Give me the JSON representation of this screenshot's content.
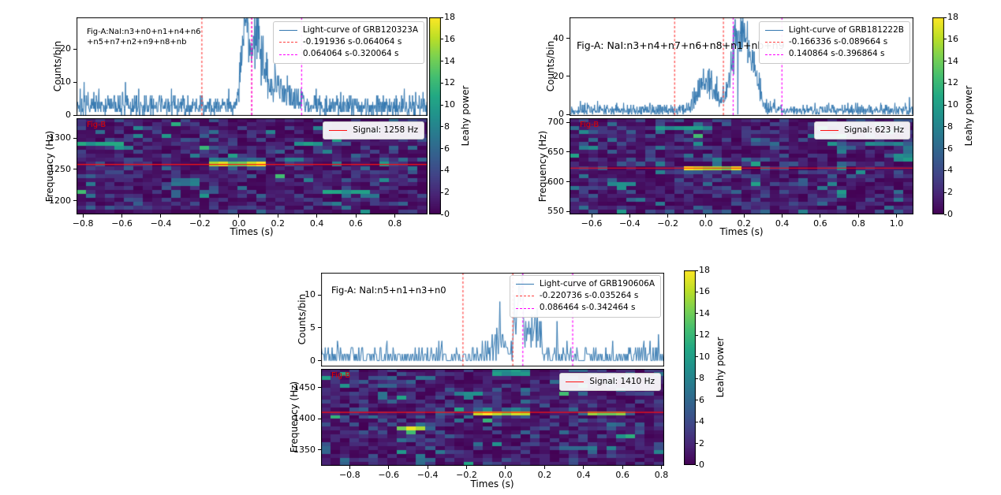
{
  "chart_data": {
    "colorbar": {
      "label": "Leahy power",
      "min": 0,
      "max": 18,
      "ticks": [
        0,
        2,
        4,
        6,
        8,
        10,
        12,
        14,
        16,
        18
      ],
      "colormap": "viridis"
    },
    "panels": [
      {
        "grb": "GRB120323A",
        "fig_a_label": "Fig-A:NaI:n3+n0+n1+n4+n6\n+n5+n7+n2+n9+n8+nb",
        "fig_b_label": "Fig-B",
        "legend": {
          "lightcurve": "Light-curve of GRB120323A",
          "interval1": "-0.191936 s-0.064064 s",
          "interval2": "0.064064 s-0.320064 s",
          "signal": "Signal: 1258 Hz"
        },
        "light_curve": {
          "type": "line",
          "ylabel": "Counts/bin",
          "xlim": [
            -0.833,
            0.968
          ],
          "ylim": [
            -0.2,
            29.6
          ],
          "yticks": [
            0,
            10,
            20
          ],
          "bins": 900,
          "baseline": 2.8,
          "burst_components": [
            [
              0.03,
              0.018,
              22
            ],
            [
              0.088,
              0.032,
              17
            ],
            [
              0.17,
              0.09,
              6
            ]
          ],
          "dropouts": [],
          "red_lines": [
            -0.191936,
            0.064064
          ],
          "magenta_lines": [
            0.064064,
            0.320064
          ],
          "line_color": "#3579b1",
          "red_color": "#ff4040",
          "magenta_color": "#ff00ff"
        },
        "spectrogram": {
          "type": "heatmap",
          "ylabel": "Frequency (Hz)",
          "xlabel": "Times (s)",
          "flim": [
            1178,
            1332
          ],
          "yticks": [
            1200,
            1250,
            1300
          ],
          "xticks": [
            -0.8,
            -0.6,
            -0.4,
            -0.2,
            0.0,
            0.2,
            0.4,
            0.6,
            0.8
          ],
          "signal_hz": 1258,
          "signal_color": "#ff1111",
          "streak_trange": [
            -0.17,
            0.13
          ],
          "hot_cells": [
            [
              -0.85,
              -0.7,
              1284,
              1291,
              10
            ],
            [
              -0.68,
              -0.58,
              1287,
              1295,
              12
            ],
            [
              -0.62,
              -0.54,
              1280,
              1287,
              9
            ],
            [
              0.45,
              0.66,
              1210,
              1218,
              10
            ],
            [
              0.24,
              0.34,
              1263,
              1270,
              8
            ],
            [
              -0.35,
              -0.22,
              1226,
              1233,
              7
            ],
            [
              0.3,
              0.42,
              1288,
              1294,
              9
            ]
          ]
        }
      },
      {
        "grb": "GRB181222B",
        "fig_a_label": "Fig-A: NaI:n3+n4+n7+n6+n8+n1+nb+n9",
        "fig_b_label": "Fig-B",
        "legend": {
          "lightcurve": "Light-curve of GRB181222B",
          "interval1": "-0.166336 s-0.089664 s",
          "interval2": "0.140864 s-0.396864 s",
          "signal": "Signal: 623 Hz"
        },
        "light_curve": {
          "type": "line",
          "ylabel": "Counts/bin",
          "xlim": [
            -0.716,
            1.089
          ],
          "ylim": [
            -0.8,
            51
          ],
          "yticks": [
            0,
            20,
            40
          ],
          "bins": 900,
          "baseline": 2.2,
          "burst_components": [
            [
              0.0,
              0.042,
              17
            ],
            [
              0.15,
              0.03,
              20
            ],
            [
              0.21,
              0.045,
              36
            ]
          ],
          "dropouts": [
            0.168
          ],
          "red_lines": [
            -0.166336,
            0.089664
          ],
          "magenta_lines": [
            0.140864,
            0.396864
          ],
          "line_color": "#3579b1",
          "red_color": "#ff4040",
          "magenta_color": "#ff00ff"
        },
        "spectrogram": {
          "type": "heatmap",
          "ylabel": "Frequency (Hz)",
          "xlabel": "Times (s)",
          "flim": [
            545,
            707
          ],
          "yticks": [
            550,
            600,
            650,
            700
          ],
          "xticks": [
            -0.6,
            -0.4,
            -0.2,
            0.0,
            0.2,
            0.4,
            0.6,
            0.8,
            1.0
          ],
          "signal_hz": 623,
          "signal_color": "#ff1111",
          "streak_trange": [
            -0.12,
            0.18
          ],
          "hot_cells": [
            [
              -0.25,
              0.05,
              687,
              695,
              9
            ],
            [
              0.84,
              1.02,
              659,
              667,
              8
            ],
            [
              -0.5,
              -0.38,
              589,
              597,
              8
            ],
            [
              1.0,
              1.09,
              635,
              643,
              9
            ],
            [
              -0.66,
              -0.55,
              656,
              663,
              8
            ],
            [
              0.55,
              0.68,
              671,
              678,
              7
            ]
          ]
        }
      },
      {
        "grb": "GRB190606A",
        "fig_a_label": "Fig-A: NaI:n5+n1+n3+n0",
        "fig_b_label": "Fig-B",
        "legend": {
          "lightcurve": "Light-curve of GRB190606A",
          "interval1": "-0.220736 s-0.035264 s",
          "interval2": "0.086464 s-0.342464 s",
          "signal": "Signal: 1410 Hz"
        },
        "light_curve": {
          "type": "line",
          "ylabel": "Counts/bin",
          "xlim": [
            -0.947,
            0.814
          ],
          "ylim": [
            -0.9,
            13.4
          ],
          "yticks": [
            0,
            5,
            10
          ],
          "bins": 450,
          "baseline": 0.8,
          "burst_components": [
            [
              -0.035,
              0.018,
              4
            ],
            [
              0.075,
              0.018,
              9.5
            ],
            [
              0.13,
              0.05,
              4
            ]
          ],
          "dropouts": [],
          "red_lines": [
            -0.220736,
            0.035264
          ],
          "magenta_lines": [
            0.086464,
            0.342464
          ],
          "line_color": "#3579b1",
          "red_color": "#ff4040",
          "magenta_color": "#ff00ff"
        },
        "spectrogram": {
          "type": "heatmap",
          "ylabel": "Frequency (Hz)",
          "xlabel": "Times (s)",
          "flim": [
            1324,
            1480
          ],
          "yticks": [
            1350,
            1400,
            1450
          ],
          "xticks": [
            -0.8,
            -0.6,
            -0.4,
            -0.2,
            0.0,
            0.2,
            0.4,
            0.6,
            0.8
          ],
          "signal_hz": 1410,
          "signal_color": "#ff1111",
          "streak_trange": [
            -0.18,
            0.11
          ],
          "hot_cells": [
            [
              0.43,
              0.63,
              1403,
              1409,
              15
            ],
            [
              -0.57,
              -0.43,
              1382,
              1388,
              16
            ],
            [
              -0.06,
              0.12,
              1468,
              1477,
              9
            ],
            [
              0.28,
              0.45,
              1351,
              1358,
              7
            ],
            [
              -0.25,
              -0.1,
              1438,
              1444,
              8
            ]
          ]
        }
      }
    ]
  }
}
